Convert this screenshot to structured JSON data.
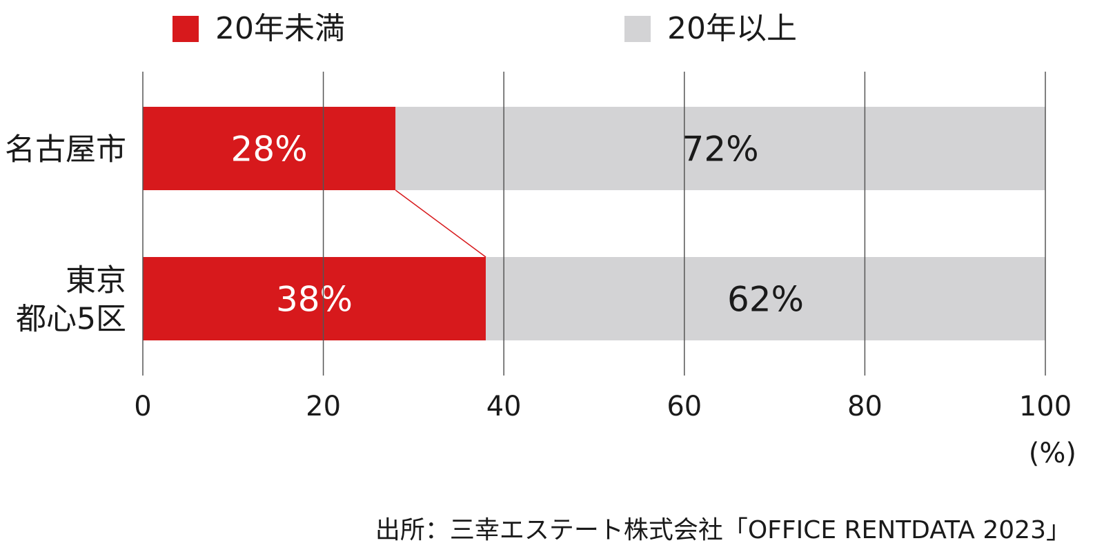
{
  "colors": {
    "under20": "#d7191c",
    "over20": "#d3d3d5",
    "grid": "#555555",
    "connector": "#d7191c"
  },
  "legend": [
    {
      "label": "20年未満",
      "color": "#d7191c"
    },
    {
      "label": "20年以上",
      "color": "#d3d3d5"
    }
  ],
  "source": "出所：三幸エステート株式会社「OFFICE RENTDATA 2023」",
  "chart_data": {
    "type": "bar",
    "orientation": "horizontal",
    "stacked": true,
    "categories": [
      {
        "lines": [
          "名古屋市"
        ]
      },
      {
        "lines": [
          "東京",
          "都心5区"
        ]
      }
    ],
    "series": [
      {
        "name": "20年未満",
        "values": [
          28,
          38
        ],
        "labels": [
          "28%",
          "38%"
        ]
      },
      {
        "name": "20年以上",
        "values": [
          72,
          62
        ],
        "labels": [
          "72%",
          "62%"
        ]
      }
    ],
    "xlim": [
      0,
      100
    ],
    "xticks": [
      "0",
      "20",
      "40",
      "60",
      "80",
      "100"
    ],
    "xunit": "(%)",
    "grid": true,
    "legend_position": "top",
    "connector": "line joining the ends of the 20年未満 segments"
  }
}
